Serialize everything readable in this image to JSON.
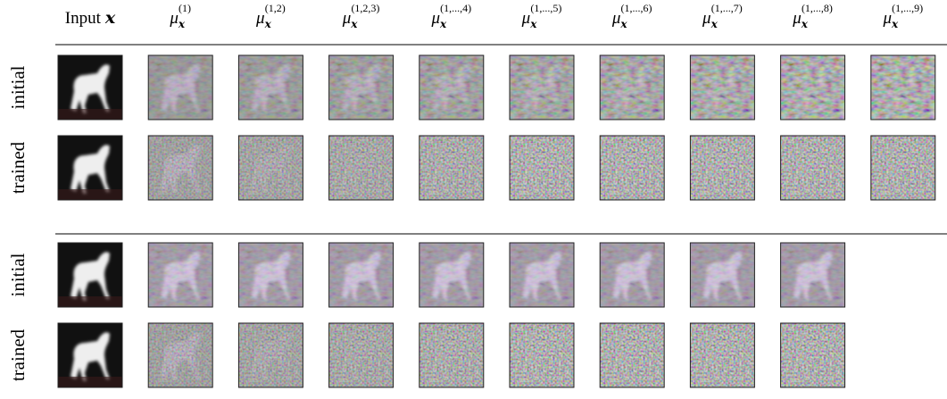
{
  "header": {
    "columns": [
      {
        "text": "Input",
        "var": "𝒙"
      },
      {
        "base": "μ",
        "sub": "𝒙",
        "sup": "(1)"
      },
      {
        "base": "μ",
        "sub": "𝒙",
        "sup": "(1,2)"
      },
      {
        "base": "μ",
        "sub": "𝒙",
        "sup": "(1,2,3)"
      },
      {
        "base": "μ",
        "sub": "𝒙",
        "sup": "(1,...,4)"
      },
      {
        "base": "μ",
        "sub": "𝒙",
        "sup": "(1,...,5)"
      },
      {
        "base": "μ",
        "sub": "𝒙",
        "sup": "(1,...,6)"
      },
      {
        "base": "μ",
        "sub": "𝒙",
        "sup": "(1,...,7)"
      },
      {
        "base": "μ",
        "sub": "𝒙",
        "sup": "(1,...,8)"
      },
      {
        "base": "μ",
        "sub": "𝒙",
        "sup": "(1,...,9)"
      }
    ]
  },
  "sections": [
    {
      "rows": [
        {
          "label": "initial"
        },
        {
          "label": "trained"
        }
      ]
    },
    {
      "rows": [
        {
          "label": "initial"
        },
        {
          "label": "trained"
        }
      ]
    }
  ]
}
